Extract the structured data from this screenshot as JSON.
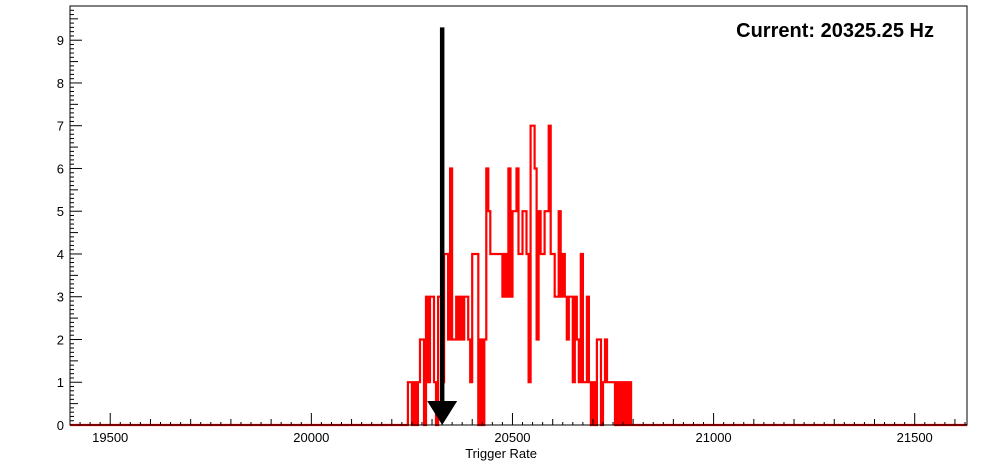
{
  "chart_data": {
    "type": "histogram",
    "title": "",
    "annotation": "Current: 20325.25 Hz",
    "xlabel": "Trigger Rate",
    "ylabel": "",
    "xlim": [
      19400,
      21630
    ],
    "ylim": [
      0,
      9.8
    ],
    "x_tick_labels": [
      "19500",
      "20000",
      "20500",
      "21000",
      "21500"
    ],
    "y_tick_labels": [
      "0",
      "1",
      "2",
      "3",
      "4",
      "5",
      "6",
      "7",
      "8",
      "9"
    ],
    "grid": false,
    "legend": "none",
    "series": [
      {
        "line_color": "#ff0000",
        "bin_width": 5,
        "bins": [
          [
            20240,
            1
          ],
          [
            20245,
            1
          ],
          [
            20255,
            1
          ],
          [
            20260,
            0
          ],
          [
            20265,
            1
          ],
          [
            20270,
            2
          ],
          [
            20275,
            2
          ],
          [
            20285,
            3
          ],
          [
            20290,
            1
          ],
          [
            20295,
            3
          ],
          [
            20300,
            3
          ],
          [
            20305,
            1
          ],
          [
            20315,
            3
          ],
          [
            20320,
            3
          ],
          [
            20325,
            1
          ],
          [
            20330,
            4
          ],
          [
            20335,
            4
          ],
          [
            20340,
            2
          ],
          [
            20345,
            6
          ],
          [
            20350,
            2
          ],
          [
            20355,
            2
          ],
          [
            20360,
            3
          ],
          [
            20365,
            2
          ],
          [
            20370,
            3
          ],
          [
            20375,
            2
          ],
          [
            20380,
            3
          ],
          [
            20385,
            3
          ],
          [
            20390,
            2
          ],
          [
            20395,
            1
          ],
          [
            20400,
            4
          ],
          [
            20405,
            4
          ],
          [
            20410,
            4
          ],
          [
            20420,
            2
          ],
          [
            20430,
            2
          ],
          [
            20435,
            6
          ],
          [
            20440,
            5
          ],
          [
            20445,
            4
          ],
          [
            20450,
            4
          ],
          [
            20455,
            4
          ],
          [
            20460,
            4
          ],
          [
            20465,
            4
          ],
          [
            20470,
            4
          ],
          [
            20475,
            3
          ],
          [
            20480,
            4
          ],
          [
            20485,
            3
          ],
          [
            20490,
            6
          ],
          [
            20495,
            3
          ],
          [
            20500,
            5
          ],
          [
            20505,
            5
          ],
          [
            20510,
            6
          ],
          [
            20515,
            4
          ],
          [
            20520,
            4
          ],
          [
            20525,
            5
          ],
          [
            20530,
            5
          ],
          [
            20535,
            4
          ],
          [
            20540,
            1
          ],
          [
            20545,
            7
          ],
          [
            20550,
            7
          ],
          [
            20555,
            6
          ],
          [
            20560,
            2
          ],
          [
            20565,
            5
          ],
          [
            20570,
            4
          ],
          [
            20575,
            4
          ],
          [
            20580,
            5
          ],
          [
            20585,
            5
          ],
          [
            20590,
            7
          ],
          [
            20595,
            4
          ],
          [
            20600,
            4
          ],
          [
            20605,
            3
          ],
          [
            20610,
            3
          ],
          [
            20615,
            5
          ],
          [
            20620,
            3
          ],
          [
            20625,
            4
          ],
          [
            20630,
            3
          ],
          [
            20635,
            2
          ],
          [
            20640,
            3
          ],
          [
            20645,
            3
          ],
          [
            20650,
            1
          ],
          [
            20655,
            3
          ],
          [
            20660,
            2
          ],
          [
            20665,
            1
          ],
          [
            20670,
            4
          ],
          [
            20675,
            1
          ],
          [
            20680,
            1
          ],
          [
            20685,
            3
          ],
          [
            20690,
            1
          ],
          [
            20695,
            0
          ],
          [
            20700,
            1
          ],
          [
            20705,
            0
          ],
          [
            20710,
            2
          ],
          [
            20715,
            2
          ],
          [
            20720,
            0
          ],
          [
            20725,
            1
          ],
          [
            20730,
            2
          ],
          [
            20735,
            1
          ],
          [
            20740,
            1
          ],
          [
            20745,
            1
          ],
          [
            20750,
            1
          ],
          [
            20755,
            0
          ],
          [
            20760,
            1
          ],
          [
            20765,
            0
          ],
          [
            20770,
            1
          ],
          [
            20775,
            0
          ],
          [
            20780,
            1
          ],
          [
            20785,
            0
          ],
          [
            20790,
            1
          ]
        ]
      }
    ],
    "marker": {
      "type": "arrow-down",
      "x": 20325.25,
      "y_top": 9.3,
      "y_bottom": 0,
      "color": "#000000"
    }
  }
}
